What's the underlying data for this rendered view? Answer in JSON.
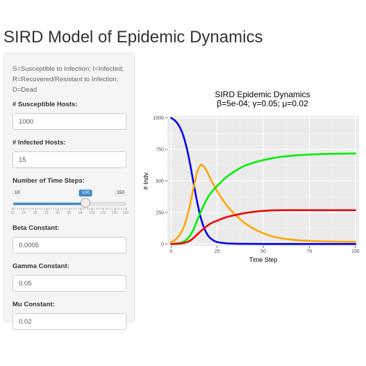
{
  "page_title": "SIRD Model of Epidemic Dynamics",
  "sidebar": {
    "legend_text": "S=Susceptible to Infection; I=Infected; R=Recovered/Resistant to Infection; D=Dead",
    "susceptible": {
      "label": "# Susceptible Hosts:",
      "value": "1000"
    },
    "infected": {
      "label": "# Infected Hosts:",
      "value": "15"
    },
    "time_steps": {
      "label": "Number of Time Steps:",
      "min_label": "10",
      "max_label": "150",
      "min": 10,
      "max": 150,
      "value": 100,
      "value_label": "100",
      "tick_labels": [
        "10",
        "24",
        "38",
        "52",
        "66",
        "80",
        "94",
        "108",
        "122",
        "136",
        "150"
      ]
    },
    "beta": {
      "label": "Beta Constant:",
      "value": "0.0005"
    },
    "gamma": {
      "label": "Gamma Constant:",
      "value": "0.05"
    },
    "mu": {
      "label": "Mu Constant:",
      "value": "0.02"
    }
  },
  "chart_data": {
    "type": "line",
    "title": "SIRD Epidemic Dynamics",
    "subtitle": "β=5e-04; γ=0.05; μ=0.02",
    "xlabel": "Time Step",
    "ylabel": "# Indv.",
    "xlim": [
      -2,
      102
    ],
    "ylim": [
      -15,
      1015
    ],
    "xticks": [
      0,
      25,
      50,
      75,
      100
    ],
    "yticks": [
      0,
      250,
      500,
      750,
      1000
    ],
    "grid": true,
    "legend": "none",
    "series": [
      {
        "color": "#0000ee",
        "x": [
          0,
          2,
          4,
          6,
          8,
          10,
          12,
          14,
          16,
          18,
          20,
          22,
          25,
          30,
          35,
          40,
          50,
          60,
          70,
          80,
          90,
          100
        ],
        "y": [
          1000,
          980,
          945,
          885,
          790,
          660,
          500,
          345,
          215,
          125,
          68,
          38,
          15,
          5,
          2,
          1,
          0,
          0,
          0,
          0,
          0,
          0
        ]
      },
      {
        "color": "#ffa500",
        "x": [
          0,
          2,
          4,
          6,
          8,
          10,
          12,
          14,
          16,
          18,
          20,
          22,
          25,
          30,
          35,
          40,
          45,
          50,
          55,
          60,
          65,
          70,
          75,
          80,
          85,
          90,
          95,
          100
        ],
        "y": [
          15,
          30,
          60,
          105,
          180,
          290,
          430,
          560,
          625,
          610,
          560,
          500,
          420,
          310,
          230,
          165,
          120,
          85,
          60,
          45,
          35,
          28,
          24,
          21,
          19,
          18,
          17,
          17
        ]
      },
      {
        "color": "#00ee00",
        "x": [
          0,
          5,
          8,
          10,
          12,
          14,
          16,
          18,
          20,
          22,
          25,
          30,
          35,
          40,
          45,
          50,
          55,
          60,
          70,
          80,
          90,
          100
        ],
        "y": [
          0,
          8,
          30,
          60,
          110,
          180,
          250,
          315,
          370,
          410,
          460,
          530,
          580,
          620,
          645,
          665,
          680,
          692,
          705,
          712,
          716,
          718
        ]
      },
      {
        "color": "#ee0000",
        "x": [
          0,
          5,
          8,
          10,
          12,
          14,
          16,
          18,
          20,
          22,
          25,
          30,
          35,
          40,
          45,
          50,
          55,
          60,
          70,
          80,
          90,
          100
        ],
        "y": [
          0,
          3,
          12,
          24,
          45,
          72,
          100,
          125,
          148,
          166,
          185,
          212,
          230,
          245,
          255,
          262,
          266,
          268,
          268,
          268,
          268,
          268
        ]
      }
    ]
  }
}
